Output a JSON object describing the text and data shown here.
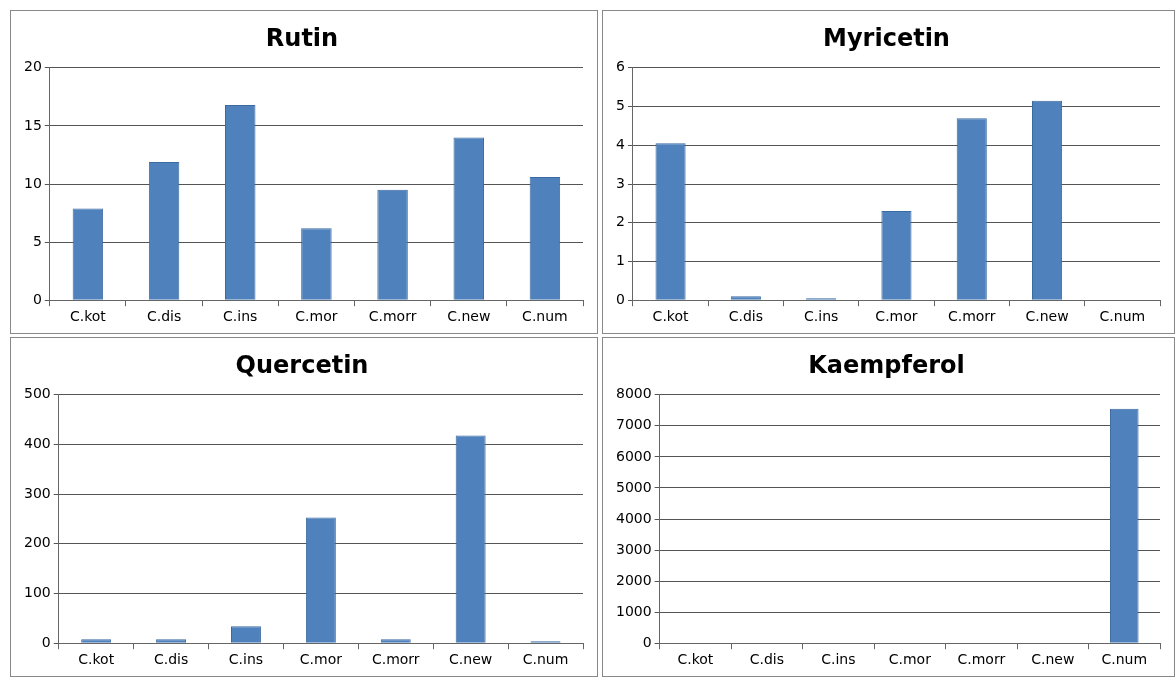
{
  "chart_data": [
    {
      "type": "bar",
      "title": "Rutin",
      "categories": [
        "C.kot",
        "C.dis",
        "C.ins",
        "C.mor",
        "C.morr",
        "C.new",
        "C.num"
      ],
      "values": [
        7.9,
        11.9,
        16.8,
        6.2,
        9.5,
        14,
        10.6
      ],
      "color": "#4f81bd",
      "ylim": [
        0,
        20
      ],
      "yticks": [
        0,
        5,
        10,
        15,
        20
      ],
      "grid": "y"
    },
    {
      "type": "bar",
      "title": "Myricetin",
      "categories": [
        "C.kot",
        "C.dis",
        "C.ins",
        "C.mor",
        "C.morr",
        "C.new",
        "C.num"
      ],
      "values": [
        4.05,
        0.1,
        0.05,
        2.3,
        4.7,
        5.15,
        0
      ],
      "color": "#4f81bd",
      "ylim": [
        0,
        6
      ],
      "yticks": [
        0,
        1,
        2,
        3,
        4,
        5,
        6
      ],
      "grid": "y"
    },
    {
      "type": "bar",
      "title": "Quercetin",
      "categories": [
        "C.kot",
        "C.dis",
        "C.ins",
        "C.mor",
        "C.morr",
        "C.new",
        "C.num"
      ],
      "values": [
        8,
        8,
        34,
        253,
        8,
        418,
        4
      ],
      "color": "#4f81bd",
      "ylim": [
        0,
        500
      ],
      "yticks": [
        0,
        100,
        200,
        300,
        400,
        500
      ],
      "grid": "y"
    },
    {
      "type": "bar",
      "title": "Kaempferol",
      "categories": [
        "C.kot",
        "C.dis",
        "C.ins",
        "C.mor",
        "C.morr",
        "C.new",
        "C.num"
      ],
      "values": [
        0,
        0,
        0,
        0,
        0,
        0,
        7550
      ],
      "color": "#4f81bd",
      "ylim": [
        0,
        8000
      ],
      "yticks": [
        0,
        1000,
        2000,
        3000,
        4000,
        5000,
        6000,
        7000,
        8000
      ],
      "grid": "y"
    }
  ]
}
